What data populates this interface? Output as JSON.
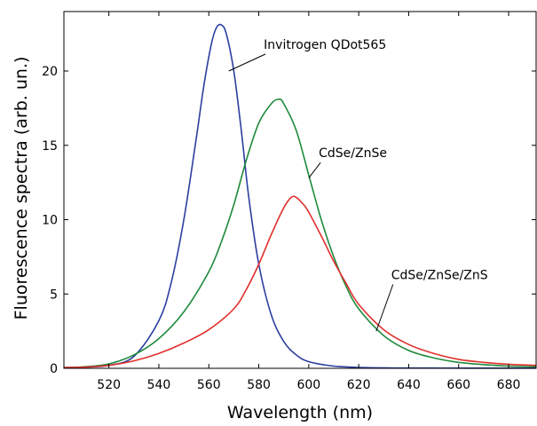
{
  "chart_data": {
    "type": "line",
    "xlabel": "Wavelength (nm)",
    "ylabel": "Fluorescence spectra (arb. un.)",
    "xlim": [
      502,
      691
    ],
    "ylim": [
      0,
      24
    ],
    "x_ticks": [
      520,
      540,
      560,
      580,
      600,
      620,
      640,
      660,
      680
    ],
    "y_ticks": [
      0,
      5,
      10,
      15,
      20
    ],
    "grid": false,
    "series": [
      {
        "name": "Invitrogen QDot565",
        "color": "#2b3fa0",
        "points": [
          [
            502,
            0.05
          ],
          [
            510,
            0.08
          ],
          [
            520,
            0.2
          ],
          [
            530,
            0.8
          ],
          [
            540,
            3.2
          ],
          [
            545,
            5.8
          ],
          [
            550,
            10.0
          ],
          [
            555,
            15.5
          ],
          [
            558,
            19.0
          ],
          [
            561,
            21.8
          ],
          [
            563,
            22.9
          ],
          [
            565,
            23.1
          ],
          [
            567,
            22.5
          ],
          [
            570,
            20.0
          ],
          [
            573,
            16.0
          ],
          [
            576,
            11.5
          ],
          [
            580,
            7.0
          ],
          [
            585,
            3.6
          ],
          [
            590,
            1.8
          ],
          [
            595,
            0.9
          ],
          [
            600,
            0.45
          ],
          [
            610,
            0.15
          ],
          [
            620,
            0.06
          ],
          [
            640,
            0.02
          ],
          [
            691,
            0.01
          ]
        ]
      },
      {
        "name": "CdSe/ZnSe",
        "color": "#1f8a3c",
        "points": [
          [
            502,
            0.05
          ],
          [
            510,
            0.1
          ],
          [
            520,
            0.3
          ],
          [
            530,
            0.9
          ],
          [
            540,
            2.0
          ],
          [
            550,
            3.8
          ],
          [
            560,
            6.5
          ],
          [
            565,
            8.5
          ],
          [
            570,
            11.0
          ],
          [
            575,
            14.0
          ],
          [
            580,
            16.5
          ],
          [
            585,
            17.8
          ],
          [
            588,
            18.1
          ],
          [
            590,
            17.8
          ],
          [
            595,
            16.0
          ],
          [
            600,
            13.0
          ],
          [
            605,
            10.0
          ],
          [
            610,
            7.5
          ],
          [
            615,
            5.5
          ],
          [
            620,
            4.0
          ],
          [
            630,
            2.2
          ],
          [
            640,
            1.2
          ],
          [
            650,
            0.7
          ],
          [
            660,
            0.4
          ],
          [
            670,
            0.25
          ],
          [
            680,
            0.15
          ],
          [
            691,
            0.1
          ]
        ]
      },
      {
        "name": "CdSe/ZnSe/ZnS",
        "color": "#e0302c",
        "points": [
          [
            502,
            0.05
          ],
          [
            510,
            0.08
          ],
          [
            520,
            0.2
          ],
          [
            530,
            0.5
          ],
          [
            540,
            1.0
          ],
          [
            550,
            1.7
          ],
          [
            560,
            2.6
          ],
          [
            570,
            4.0
          ],
          [
            575,
            5.3
          ],
          [
            580,
            7.0
          ],
          [
            585,
            9.0
          ],
          [
            590,
            10.8
          ],
          [
            593,
            11.5
          ],
          [
            595,
            11.5
          ],
          [
            598,
            11.0
          ],
          [
            600,
            10.5
          ],
          [
            605,
            8.9
          ],
          [
            610,
            7.2
          ],
          [
            615,
            5.7
          ],
          [
            620,
            4.3
          ],
          [
            630,
            2.6
          ],
          [
            640,
            1.6
          ],
          [
            650,
            1.0
          ],
          [
            660,
            0.6
          ],
          [
            670,
            0.4
          ],
          [
            680,
            0.27
          ],
          [
            691,
            0.2
          ]
        ]
      }
    ],
    "annotations": [
      {
        "text": "Invitrogen QDot565",
        "series": 0,
        "point": [
          568,
          20.0
        ],
        "label_at": [
          582,
          21.5
        ]
      },
      {
        "text": "CdSe/ZnSe",
        "series": 1,
        "point": [
          600,
          12.8
        ],
        "label_at": [
          604,
          14.2
        ]
      },
      {
        "text": "CdSe/ZnSe/ZnS",
        "series": 2,
        "point": [
          627,
          2.5
        ],
        "label_at": [
          633,
          6.0
        ]
      }
    ]
  }
}
